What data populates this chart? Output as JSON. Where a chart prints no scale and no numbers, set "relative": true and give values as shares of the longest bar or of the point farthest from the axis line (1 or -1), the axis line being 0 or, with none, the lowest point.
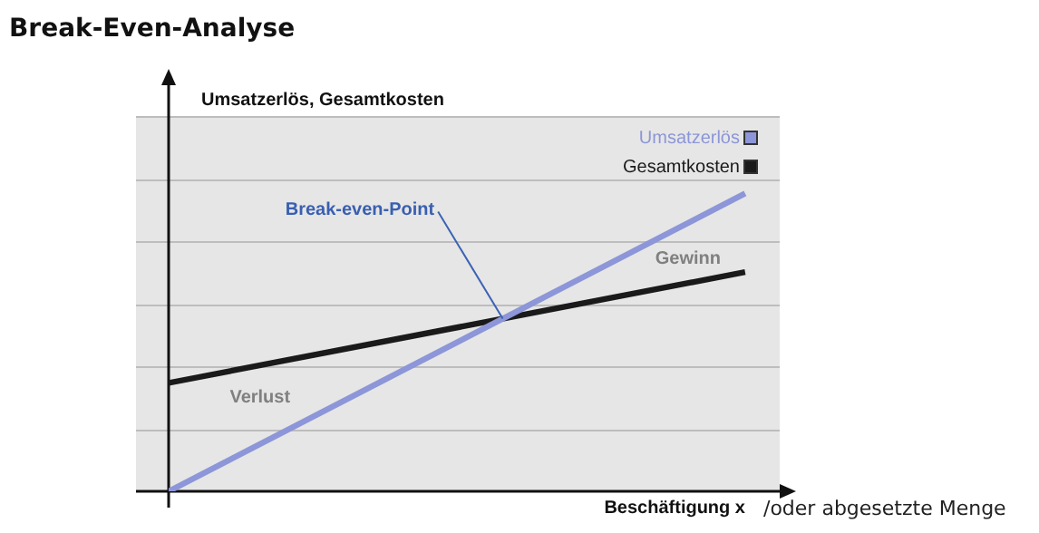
{
  "chart_data": {
    "type": "line",
    "title": "Break-Even-Analyse",
    "xlabel": "Beschäftigung x",
    "ylabel": "Umsatzerlös, Gesamtkosten",
    "categories": [
      null,
      null
    ],
    "relative": true,
    "legend": "top right",
    "marker": "none",
    "line_style": "solid",
    "series": [
      {
        "name": "Umsatzerlös",
        "color": "#8c96d8",
        "values": [
          0,
          1
        ]
      },
      {
        "name": "Gesamtkosten",
        "color": "#1a1a1a",
        "values": [
          0.364,
          0.736
        ]
      }
    ],
    "ref_lines": [
      {
        "axis": "y",
        "value": 0.21,
        "color": "#bdbdbd"
      },
      {
        "axis": "y",
        "value": 0.42,
        "color": "#bdbdbd"
      },
      {
        "axis": "y",
        "value": 0.63,
        "color": "#bdbdbd"
      },
      {
        "axis": "y",
        "value": 0.84,
        "color": "#bdbdbd"
      },
      {
        "axis": "y",
        "value": 1.05,
        "color": "#bdbdbd"
      },
      {
        "axis": "y",
        "value": 1.26,
        "color": "#bdbdbd"
      }
    ],
    "annotations": [
      "Break-even-Point",
      "Gewinn",
      "Verlust",
      "/oder abgesetzte Menge"
    ]
  }
}
